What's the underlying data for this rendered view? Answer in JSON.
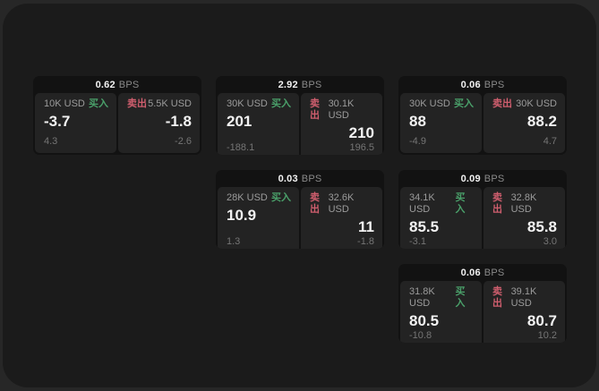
{
  "labels": {
    "bps_unit": "BPS",
    "buy": "买入",
    "sell": "卖出"
  },
  "colors": {
    "outer-bg": "#272727",
    "page-bg": "#1b1b1b",
    "card-bg": "#121212",
    "tile-bg": "#232323",
    "buy-green": "#4aa06a",
    "sell-red": "#cf5e6e",
    "text-primary": "#f2f2f2",
    "text-secondary": "#9b9b9b",
    "text-unit": "#8a8a8a",
    "text-dim": "#757575"
  },
  "cards": [
    {
      "bps": "0.62",
      "buy": {
        "amount": "10K USD",
        "price": "-3.7",
        "change": "4.3"
      },
      "sell": {
        "amount": "5.5K USD",
        "price": "-1.8",
        "change": "-2.6"
      }
    },
    {
      "bps": "2.92",
      "buy": {
        "amount": "30K USD",
        "price": "201",
        "change": "-188.1"
      },
      "sell": {
        "amount": "30.1K USD",
        "price": "210",
        "change": "196.5"
      }
    },
    {
      "bps": "0.06",
      "buy": {
        "amount": "30K USD",
        "price": "88",
        "change": "-4.9"
      },
      "sell": {
        "amount": "30K USD",
        "price": "88.2",
        "change": "4.7"
      }
    },
    {
      "bps": "0.03",
      "buy": {
        "amount": "28K USD",
        "price": "10.9",
        "change": "1.3"
      },
      "sell": {
        "amount": "32.6K USD",
        "price": "11",
        "change": "-1.8"
      }
    },
    {
      "bps": "0.09",
      "buy": {
        "amount": "34.1K USD",
        "price": "85.5",
        "change": "-3.1"
      },
      "sell": {
        "amount": "32.8K USD",
        "price": "85.8",
        "change": "3.0"
      }
    },
    {
      "bps": "0.06",
      "buy": {
        "amount": "31.8K USD",
        "price": "80.5",
        "change": "-10.8"
      },
      "sell": {
        "amount": "39.1K USD",
        "price": "80.7",
        "change": "10.2"
      }
    }
  ]
}
